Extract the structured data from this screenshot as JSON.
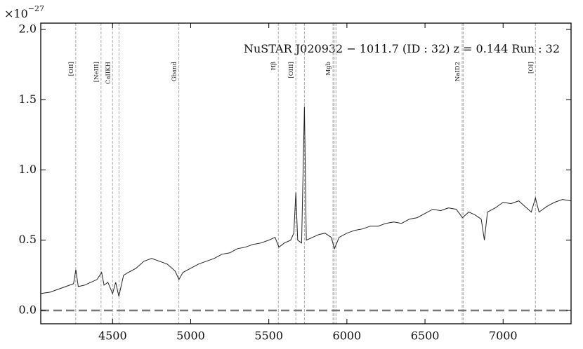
{
  "chart_data": {
    "type": "line",
    "title": "NuSTAR J020932 − 1011.7 (ID : 32)   z = 0.144   Run : 32",
    "offset_label": {
      "base": "×10",
      "exp": "−27"
    },
    "xlim": [
      4040,
      7435
    ],
    "ylim": [
      -0.095,
      2.045
    ],
    "xticks": [
      4500,
      5000,
      5500,
      6000,
      6500,
      7000
    ],
    "yticks": [
      {
        "value": 0,
        "label": "0.0"
      },
      0.5,
      {
        "value": 1,
        "label": "1.0"
      },
      1.5,
      {
        "value": 2,
        "label": "2.0"
      }
    ],
    "hline": 0,
    "line_markers": [
      {
        "label": "[OII]",
        "x": [
          4264
        ]
      },
      {
        "label": "[NeIII]",
        "x": [
          4426
        ]
      },
      {
        "label": "CaIIKH",
        "x": [
          4500,
          4541
        ]
      },
      {
        "label": "Gband",
        "x": [
          4924
        ]
      },
      {
        "label": "Hβ",
        "x": [
          5561
        ]
      },
      {
        "label": "[OIII]",
        "x": [
          5673,
          5728
        ]
      },
      {
        "label": "Mgb",
        "x": [
          5911,
          5918,
          5930
        ]
      },
      {
        "label": "NaID2",
        "x": [
          6738,
          6745
        ]
      },
      {
        "label": "[OI]",
        "x": [
          7207
        ]
      }
    ],
    "x": [
      4040,
      4100,
      4150,
      4200,
      4250,
      4265,
      4280,
      4320,
      4360,
      4400,
      4430,
      4445,
      4470,
      4500,
      4520,
      4540,
      4570,
      4600,
      4650,
      4700,
      4750,
      4800,
      4850,
      4900,
      4925,
      4950,
      5000,
      5050,
      5100,
      5150,
      5200,
      5250,
      5300,
      5350,
      5400,
      5450,
      5500,
      5540,
      5565,
      5600,
      5640,
      5660,
      5673,
      5685,
      5710,
      5728,
      5740,
      5780,
      5820,
      5860,
      5900,
      5920,
      5950,
      6000,
      6050,
      6100,
      6150,
      6200,
      6250,
      6300,
      6350,
      6400,
      6450,
      6500,
      6550,
      6600,
      6650,
      6700,
      6740,
      6780,
      6820,
      6860,
      6880,
      6900,
      6950,
      7000,
      7050,
      7100,
      7150,
      7180,
      7207,
      7230,
      7280,
      7330,
      7380,
      7435
    ],
    "series": [
      {
        "color": "#222222",
        "values": [
          0.12,
          0.13,
          0.15,
          0.17,
          0.19,
          0.29,
          0.17,
          0.18,
          0.2,
          0.22,
          0.27,
          0.18,
          0.2,
          0.12,
          0.2,
          0.1,
          0.25,
          0.27,
          0.3,
          0.35,
          0.37,
          0.35,
          0.33,
          0.28,
          0.22,
          0.27,
          0.3,
          0.33,
          0.35,
          0.37,
          0.4,
          0.41,
          0.44,
          0.45,
          0.47,
          0.48,
          0.5,
          0.52,
          0.45,
          0.48,
          0.5,
          0.55,
          0.84,
          0.5,
          0.48,
          1.45,
          0.5,
          0.52,
          0.54,
          0.55,
          0.52,
          0.44,
          0.52,
          0.55,
          0.57,
          0.58,
          0.6,
          0.6,
          0.62,
          0.63,
          0.62,
          0.65,
          0.66,
          0.69,
          0.72,
          0.71,
          0.73,
          0.72,
          0.66,
          0.7,
          0.68,
          0.65,
          0.5,
          0.7,
          0.73,
          0.77,
          0.76,
          0.78,
          0.73,
          0.7,
          0.8,
          0.7,
          0.74,
          0.77,
          0.79,
          0.78
        ]
      }
    ]
  }
}
